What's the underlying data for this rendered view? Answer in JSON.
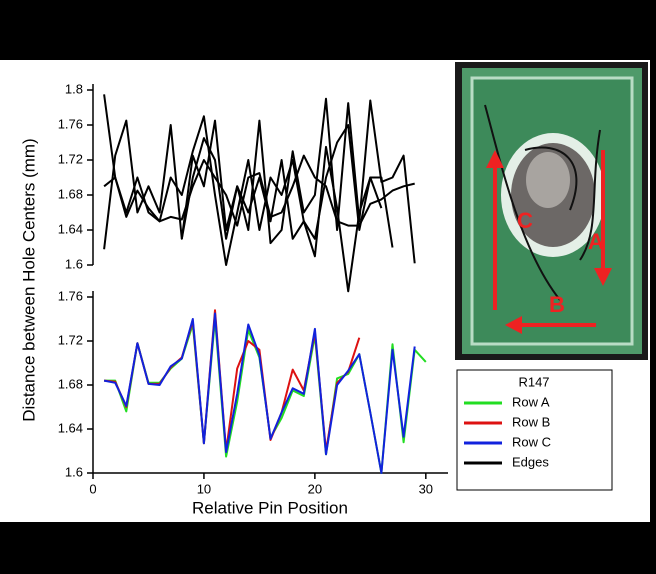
{
  "chart_data": [
    {
      "type": "line",
      "ylabel": "Distance between Hole Centers (mm)",
      "x": [
        1,
        2,
        3,
        4,
        5,
        6,
        7,
        8,
        9,
        10,
        11,
        12,
        13,
        14,
        15,
        16,
        17,
        18,
        19,
        20,
        21,
        22,
        23,
        24,
        25,
        26,
        27,
        28,
        29
      ],
      "ylim": [
        1.6,
        1.8
      ],
      "yticks": [
        1.6,
        1.64,
        1.68,
        1.72,
        1.76,
        1.8
      ],
      "series": [
        {
          "name": "Edges",
          "color": "#000000",
          "values": [
            1.795,
            1.7,
            1.655,
            1.685,
            1.665,
            1.65,
            1.655,
            1.652,
            1.69,
            1.72,
            1.7,
            1.68,
            1.645,
            1.7,
            1.705,
            1.655,
            1.66,
            1.69,
            1.725,
            1.7,
            1.69,
            1.65,
            1.645,
            1.645,
            1.67,
            1.675,
            1.685,
            1.69,
            1.693
          ]
        },
        {
          "color": "#000000",
          "values": [
            1.618,
            1.725,
            1.765,
            1.66,
            1.69,
            1.66,
            1.76,
            1.63,
            1.725,
            1.69,
            1.765,
            1.64,
            1.69,
            1.64,
            1.765,
            1.625,
            1.64,
            1.73,
            1.66,
            1.68,
            1.79,
            1.64,
            1.785,
            1.65,
            1.788,
            1.695,
            1.7,
            1.725,
            1.602
          ]
        },
        {
          "color": "#000000",
          "values": [
            1.69,
            1.7,
            1.66,
            1.7,
            1.66,
            1.65,
            1.7,
            1.68,
            1.73,
            1.77,
            1.68,
            1.6,
            1.66,
            1.72,
            1.64,
            1.7,
            1.68,
            1.72,
            1.65,
            1.63,
            1.7,
            1.74,
            1.76,
            1.64,
            1.7,
            1.7,
            1.62,
            null,
            null
          ]
        },
        {
          "color": "#000000",
          "values": [
            null,
            null,
            null,
            null,
            null,
            null,
            null,
            1.63,
            1.7,
            1.745,
            1.72,
            1.63,
            1.69,
            1.66,
            1.7,
            1.65,
            1.72,
            1.63,
            1.65,
            1.61,
            1.735,
            1.665,
            1.57,
            1.66,
            1.7,
            1.665,
            null,
            null,
            null
          ]
        }
      ]
    },
    {
      "type": "line",
      "xlabel": "Relative Pin Position",
      "x": [
        1,
        2,
        3,
        4,
        5,
        6,
        7,
        8,
        9,
        10,
        11,
        12,
        13,
        14,
        15,
        16,
        17,
        18,
        19,
        20,
        21,
        22,
        23,
        24,
        25,
        26,
        27,
        28,
        29,
        30
      ],
      "xlim": [
        0,
        32
      ],
      "xticks": [
        0,
        10,
        20,
        30
      ],
      "ylim": [
        1.6,
        1.76
      ],
      "yticks": [
        1.6,
        1.64,
        1.68,
        1.72,
        1.76
      ],
      "legend_title": "R147",
      "series": [
        {
          "name": "Row A",
          "color": "#22dd22",
          "values": [
            1.684,
            1.684,
            1.656,
            1.718,
            1.682,
            1.682,
            1.695,
            1.704,
            1.735,
            1.627,
            1.74,
            1.615,
            1.665,
            1.73,
            1.705,
            1.632,
            1.65,
            1.675,
            1.67,
            1.725,
            1.617,
            1.686,
            1.69,
            1.708,
            1.655,
            1.6,
            1.717,
            1.628,
            1.712,
            1.701
          ]
        },
        {
          "name": "Row B",
          "color": "#dd1111",
          "values": [
            1.684,
            1.683,
            1.66,
            1.718,
            1.681,
            1.681,
            1.696,
            1.705,
            1.738,
            1.627,
            1.748,
            1.62,
            1.695,
            1.72,
            1.712,
            1.63,
            1.655,
            1.694,
            1.675,
            1.728,
            1.62,
            1.682,
            1.692,
            1.723,
            null,
            null,
            null,
            null,
            null,
            null
          ]
        },
        {
          "name": "Row C",
          "color": "#1122dd",
          "values": [
            1.684,
            1.682,
            1.661,
            1.718,
            1.681,
            1.68,
            1.697,
            1.704,
            1.74,
            1.627,
            1.745,
            1.619,
            1.672,
            1.735,
            1.707,
            1.631,
            1.655,
            1.677,
            1.672,
            1.731,
            1.617,
            1.68,
            1.693,
            1.708,
            1.655,
            1.6,
            1.712,
            1.633,
            1.715,
            null
          ]
        }
      ]
    }
  ],
  "image": {
    "labels": [
      "A",
      "B",
      "C"
    ]
  }
}
